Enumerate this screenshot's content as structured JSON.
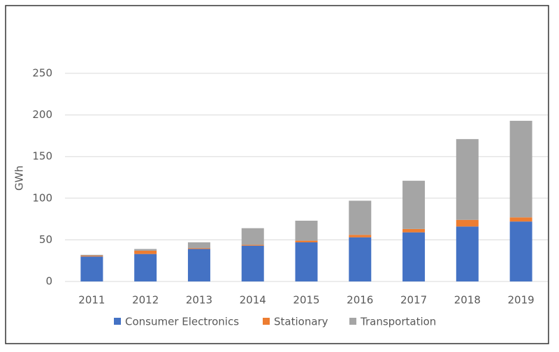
{
  "chart_data": {
    "type": "stacked-bar",
    "y_label": "GWh",
    "categories": [
      "2011",
      "2012",
      "2013",
      "2014",
      "2015",
      "2016",
      "2017",
      "2018",
      "2019"
    ],
    "series": [
      {
        "name": "Consumer Electronics",
        "color": "#4472c4",
        "values": [
          30,
          33,
          39,
          43,
          47,
          53,
          59,
          66,
          72
        ]
      },
      {
        "name": "Stationary",
        "color": "#ed7d31",
        "values": [
          1,
          4,
          1,
          1,
          2,
          3,
          4,
          8,
          5
        ]
      },
      {
        "name": "Transportation",
        "color": "#a5a5a5",
        "values": [
          1,
          2,
          7,
          20,
          24,
          41,
          58,
          97,
          116
        ]
      }
    ],
    "ylim": [
      0,
      250
    ],
    "yticks": [
      0,
      50,
      100,
      150,
      200,
      250
    ],
    "grid": true,
    "legend": "bottom"
  }
}
